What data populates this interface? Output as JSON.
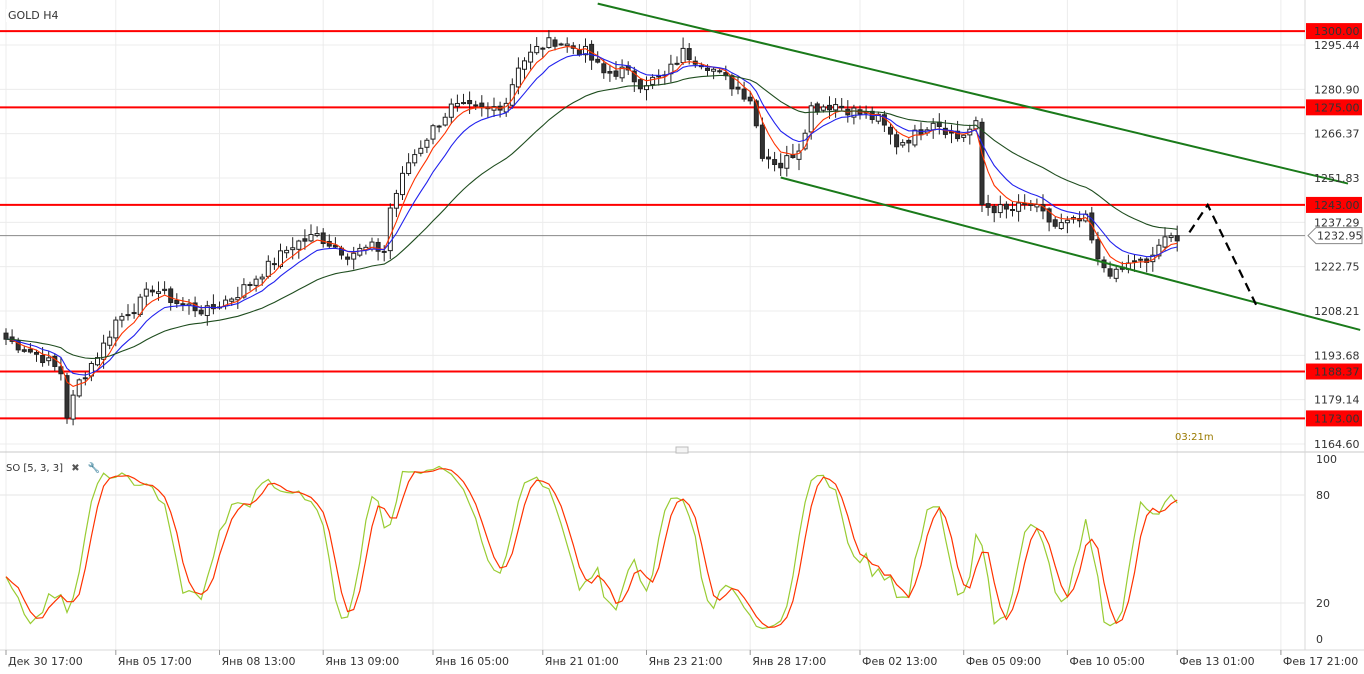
{
  "chart_data": {
    "type": "candlestick",
    "title": "GOLD H4",
    "y_ticks": [
      1295.44,
      1280.9,
      1266.37,
      1251.83,
      1237.29,
      1222.75,
      1208.21,
      1193.68,
      1179.14,
      1164.6
    ],
    "ylim": [
      1164.6,
      1309.98
    ],
    "x_ticks": [
      "Дек 30 17:00",
      "Янв 05 17:00",
      "Янв 08 13:00",
      "Янв 13 09:00",
      "Янв 16 05:00",
      "Янв 21 01:00",
      "Янв 23 21:00",
      "Янв 28 17:00",
      "Фев 02 13:00",
      "Фев 05 09:00",
      "Фев 10 05:00",
      "Фев 13 01:00",
      "Фев 17 21:00"
    ],
    "current_price": "1232.95",
    "timer": "03:21m",
    "levels": [
      {
        "label": "1300.00",
        "value": 1300.0
      },
      {
        "label": "1275.00",
        "value": 1275.0
      },
      {
        "label": "1243.00",
        "value": 1243.0
      },
      {
        "label": "1188.37",
        "value": 1188.37
      },
      {
        "label": "1173.00",
        "value": 1173.0
      }
    ],
    "close_path": [
      [
        0,
        1199
      ],
      [
        6,
        1193
      ],
      [
        9,
        1188
      ],
      [
        10,
        1174
      ],
      [
        12,
        1185
      ],
      [
        16,
        1197
      ],
      [
        18,
        1205
      ],
      [
        22,
        1211
      ],
      [
        24,
        1216
      ],
      [
        28,
        1211
      ],
      [
        33,
        1208
      ],
      [
        38,
        1214
      ],
      [
        42,
        1221
      ],
      [
        47,
        1230
      ],
      [
        51,
        1233
      ],
      [
        56,
        1227
      ],
      [
        60,
        1229
      ],
      [
        62,
        1228
      ],
      [
        63,
        1242
      ],
      [
        66,
        1257
      ],
      [
        70,
        1268
      ],
      [
        73,
        1275
      ],
      [
        79,
        1274
      ],
      [
        82,
        1277
      ],
      [
        84,
        1289
      ],
      [
        87,
        1294
      ],
      [
        90,
        1297
      ],
      [
        95,
        1293
      ],
      [
        98,
        1286
      ],
      [
        101,
        1287
      ],
      [
        104,
        1283
      ],
      [
        108,
        1285
      ],
      [
        111,
        1293
      ],
      [
        115,
        1289
      ],
      [
        118,
        1284
      ],
      [
        122,
        1278
      ],
      [
        124,
        1260
      ],
      [
        127,
        1256
      ],
      [
        130,
        1262
      ],
      [
        132,
        1275
      ],
      [
        136,
        1276
      ],
      [
        140,
        1273
      ],
      [
        143,
        1271
      ],
      [
        146,
        1263
      ],
      [
        149,
        1266
      ],
      [
        152,
        1271
      ],
      [
        156,
        1265
      ],
      [
        159,
        1269
      ],
      [
        160,
        1243
      ],
      [
        164,
        1241
      ],
      [
        168,
        1243
      ],
      [
        172,
        1236
      ],
      [
        177,
        1238
      ],
      [
        179,
        1224
      ],
      [
        182,
        1220
      ],
      [
        185,
        1225
      ],
      [
        187,
        1223
      ],
      [
        189,
        1230
      ],
      [
        192,
        1233
      ]
    ],
    "n_bars": 193,
    "x_tick_bars": [
      0,
      18,
      35,
      52,
      70,
      88,
      105,
      122,
      140,
      157,
      174,
      192,
      209
    ],
    "ma_periods": [
      {
        "period": 5,
        "color": "#ff3300"
      },
      {
        "period": 10,
        "color": "#2222ee"
      },
      {
        "period": 30,
        "color": "#1f4d1f"
      }
    ],
    "channel": {
      "color": "#1a7a1a",
      "upper": [
        [
          97,
          1309
        ],
        [
          220,
          1250
        ]
      ],
      "lower": [
        [
          127,
          1252
        ],
        [
          222,
          1202
        ]
      ]
    },
    "projection": {
      "color": "#000000",
      "points": [
        [
          194,
          1234
        ],
        [
          197,
          1243
        ],
        [
          205,
          1210
        ]
      ]
    },
    "oscillator": {
      "label": "SO [5, 3, 3]",
      "y_ticks": [
        100,
        80,
        20,
        0
      ],
      "ylim": [
        0,
        100
      ],
      "main_color": "#99cc33",
      "signal_color": "#ff3300",
      "close_icon": "close-icon",
      "settings_icon": "wrench-icon"
    },
    "colors": {
      "up": "#ffffff",
      "down": "#333333",
      "level": "#ff0000",
      "grid": "#ececec"
    }
  }
}
